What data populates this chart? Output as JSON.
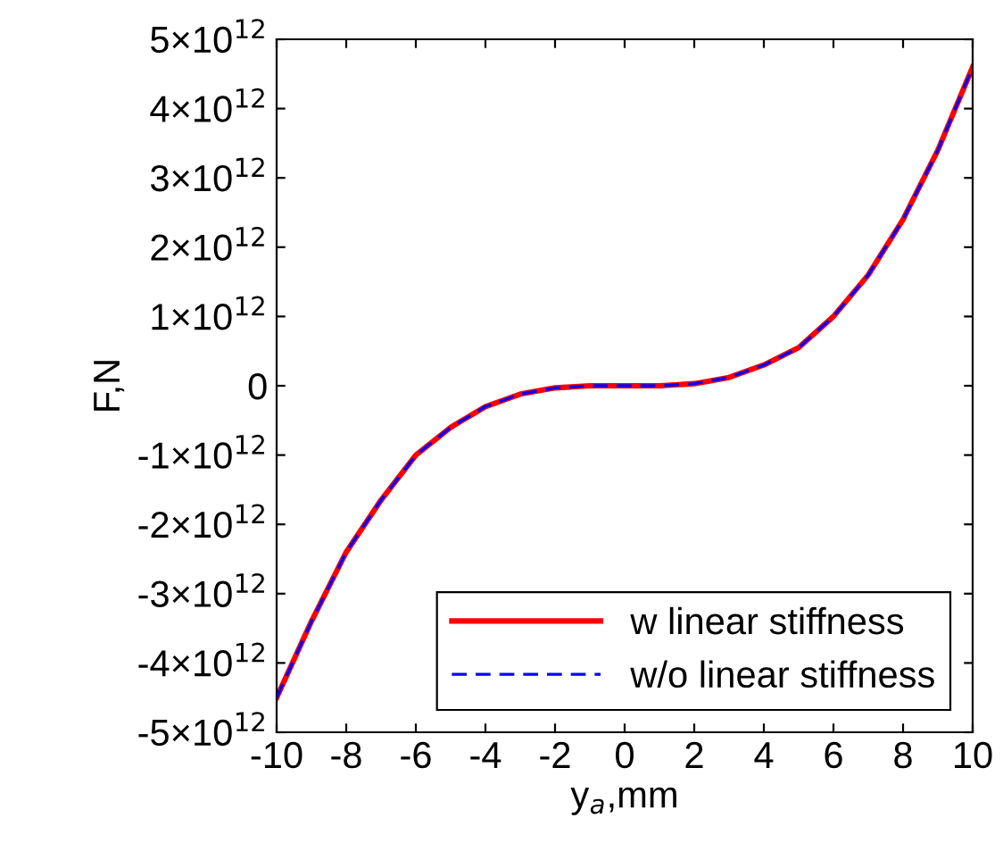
{
  "chart_data": {
    "type": "line",
    "xlabel": "y$_{a}$,mm",
    "ylabel": "F,N",
    "x": [
      -10,
      -9,
      -8,
      -7,
      -6,
      -5,
      -4,
      -3,
      -2,
      -1,
      0,
      1,
      2,
      3,
      4,
      5,
      6,
      7,
      8,
      9,
      10
    ],
    "series": [
      {
        "name": "w linear stiffness",
        "color": "#ff0000",
        "line_style": "solid",
        "values": [
          -4500000000000.0,
          -3400000000000.0,
          -2400000000000.0,
          -1650000000000.0,
          -1000000000000.0,
          -600000000000.0,
          -300000000000.0,
          -120000000000.0,
          -30000000000.0,
          0,
          0,
          0,
          30000000000.0,
          120000000000.0,
          300000000000.0,
          550000000000.0,
          1000000000000.0,
          1600000000000.0,
          2400000000000.0,
          3400000000000.0,
          4600000000000.0
        ]
      },
      {
        "name": "w/o linear stiffness",
        "color": "#0000ff",
        "line_style": "dashed",
        "values": [
          -4500000000000.0,
          -3400000000000.0,
          -2400000000000.0,
          -1650000000000.0,
          -1000000000000.0,
          -600000000000.0,
          -300000000000.0,
          -120000000000.0,
          -30000000000.0,
          0,
          0,
          0,
          30000000000.0,
          120000000000.0,
          300000000000.0,
          550000000000.0,
          1000000000000.0,
          1600000000000.0,
          2400000000000.0,
          3400000000000.0,
          4600000000000.0
        ]
      }
    ],
    "xlim": [
      -10,
      10
    ],
    "xticks": [
      -10,
      -8,
      -6,
      -4,
      -2,
      0,
      2,
      4,
      6,
      8,
      10
    ],
    "ylim": [
      -5000000000000.0,
      5000000000000.0
    ],
    "yticks": [
      {
        "value": -5000000000000.0,
        "label": "-5×10$^{12}$"
      },
      {
        "value": -4000000000000.0,
        "label": "-4×10$^{12}$"
      },
      {
        "value": -3000000000000.0,
        "label": "-3×10$^{12}$"
      },
      {
        "value": -2000000000000.0,
        "label": "-2×10$^{12}$"
      },
      {
        "value": -1000000000000.0,
        "label": "-1×10$^{12}$"
      },
      {
        "value": 0,
        "label": "0"
      },
      {
        "value": 1000000000000.0,
        "label": "1×10$^{12}$"
      },
      {
        "value": 2000000000000.0,
        "label": "2×10$^{12}$"
      },
      {
        "value": 3000000000000.0,
        "label": "3×10$^{12}$"
      },
      {
        "value": 4000000000000.0,
        "label": "4×10$^{12}$"
      },
      {
        "value": 5000000000000.0,
        "label": "5×10$^{12}$"
      }
    ],
    "grid": false,
    "legend": "bottom right",
    "marker": "none"
  }
}
